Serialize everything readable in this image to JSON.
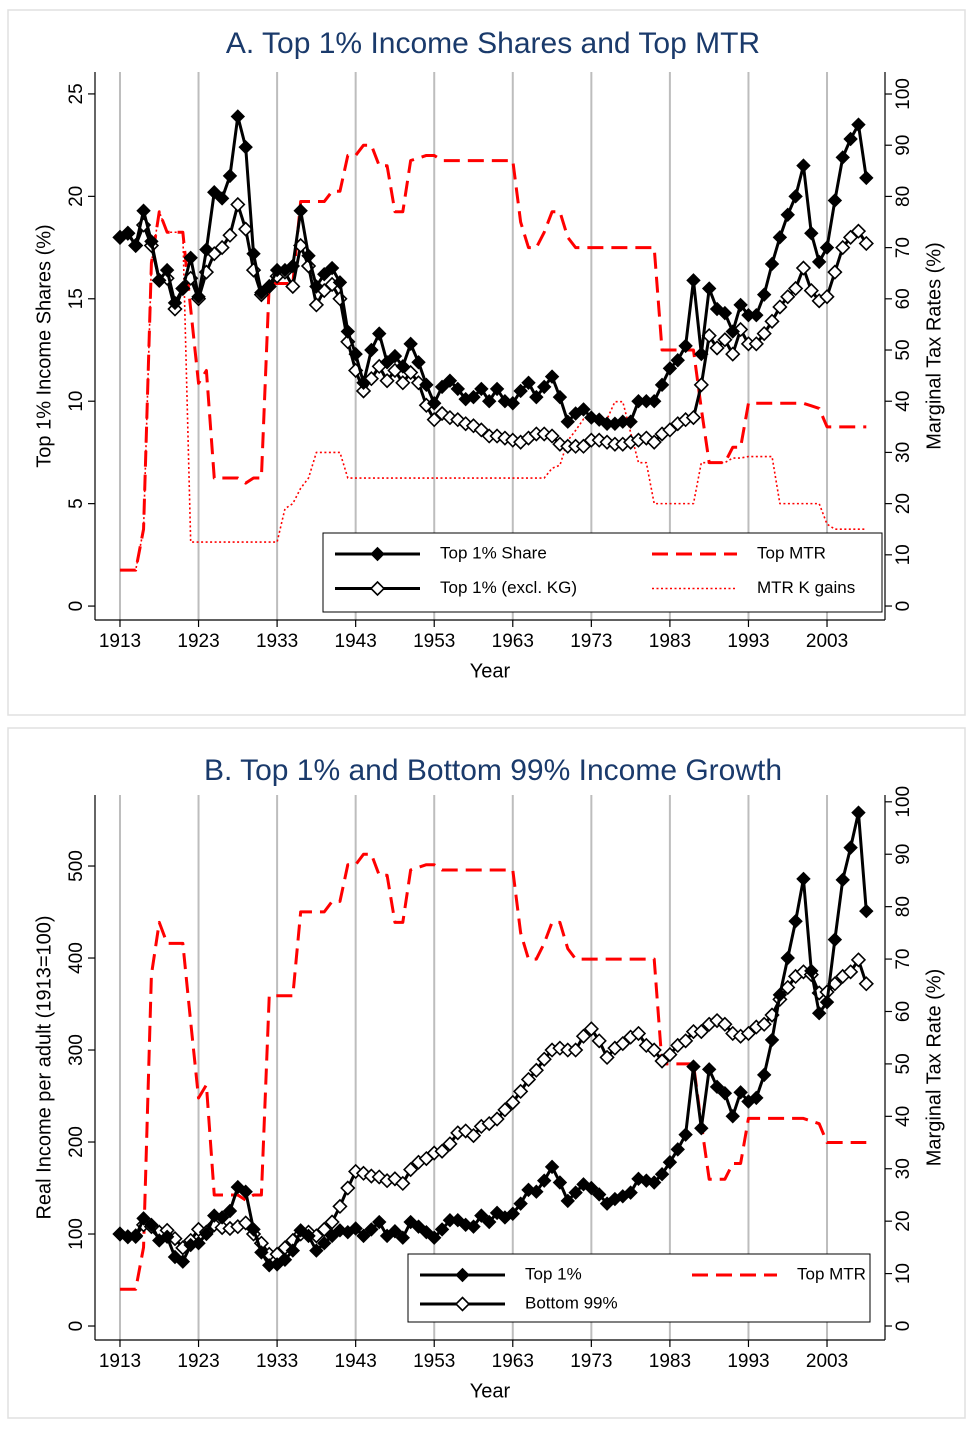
{
  "chart_data": [
    {
      "type": "line",
      "title": "A. Top 1% Income Shares and Top MTR",
      "x_label": "Year",
      "y_label": "Top 1% Income Shares (%)",
      "y2_label": "Marginal Tax Rates (%)",
      "x": [
        1913,
        1914,
        1915,
        1916,
        1917,
        1918,
        1919,
        1920,
        1921,
        1922,
        1923,
        1924,
        1925,
        1926,
        1927,
        1928,
        1929,
        1930,
        1931,
        1932,
        1933,
        1934,
        1935,
        1936,
        1937,
        1938,
        1939,
        1940,
        1941,
        1942,
        1943,
        1944,
        1945,
        1946,
        1947,
        1948,
        1949,
        1950,
        1951,
        1952,
        1953,
        1954,
        1955,
        1956,
        1957,
        1958,
        1959,
        1960,
        1961,
        1962,
        1963,
        1964,
        1965,
        1966,
        1967,
        1968,
        1969,
        1970,
        1971,
        1972,
        1973,
        1974,
        1975,
        1976,
        1977,
        1978,
        1979,
        1980,
        1981,
        1982,
        1983,
        1984,
        1985,
        1986,
        1987,
        1988,
        1989,
        1990,
        1991,
        1992,
        1993,
        1994,
        1995,
        1996,
        1997,
        1998,
        1999,
        2000,
        2001,
        2002,
        2003,
        2004,
        2005,
        2006,
        2007,
        2008
      ],
      "xlim": [
        1909.82,
        2010.38
      ],
      "xticks": [
        1913,
        1923,
        1933,
        1943,
        1953,
        1963,
        1973,
        1983,
        1993,
        2003
      ],
      "ylim": [
        -0.68,
        26.07
      ],
      "yticks": [
        0,
        5,
        10,
        15,
        20,
        25
      ],
      "y2lim": [
        -2.73,
        104.3
      ],
      "y2ticks": [
        0,
        10,
        20,
        30,
        40,
        50,
        60,
        70,
        80,
        90,
        100
      ],
      "grid": true,
      "legend": "lower right",
      "series": [
        {
          "name": "Top 1% Share",
          "color": "#000000",
          "style": "solid",
          "marker": "diamond",
          "values": [
            18.0,
            18.2,
            17.6,
            19.3,
            17.8,
            15.9,
            16.4,
            14.8,
            15.5,
            17.0,
            15.1,
            17.4,
            20.2,
            19.9,
            21.0,
            23.9,
            22.4,
            17.2,
            15.3,
            15.6,
            16.4,
            16.4,
            16.6,
            19.3,
            17.1,
            15.6,
            16.2,
            16.5,
            15.8,
            13.4,
            12.3,
            10.9,
            12.5,
            13.3,
            11.9,
            12.2,
            11.7,
            12.8,
            11.9,
            10.8,
            9.9,
            10.7,
            11.0,
            10.6,
            10.1,
            10.2,
            10.6,
            10.0,
            10.6,
            10.0,
            9.9,
            10.5,
            10.9,
            10.2,
            10.7,
            11.2,
            10.2,
            9.0,
            9.4,
            9.6,
            9.2,
            9.1,
            8.9,
            8.9,
            9.0,
            9.0,
            10.0,
            10.0,
            10.0,
            10.8,
            11.6,
            12.0,
            12.7,
            15.9,
            12.3,
            15.5,
            14.5,
            14.3,
            13.4,
            14.7,
            14.2,
            14.2,
            15.2,
            16.7,
            18.0,
            19.1,
            20.0,
            21.5,
            18.2,
            16.8,
            17.5,
            19.8,
            21.9,
            22.8,
            23.5,
            20.9
          ]
        },
        {
          "name": "Top 1% (excl. KG)",
          "color": "#000000",
          "style": "solid",
          "marker": "diamond-open",
          "values": [
            18.0,
            18.2,
            17.6,
            18.6,
            17.6,
            15.9,
            16.0,
            14.5,
            15.5,
            16.0,
            15.0,
            16.3,
            17.2,
            17.5,
            18.1,
            19.6,
            18.4,
            16.4,
            15.2,
            15.6,
            16.1,
            16.3,
            15.6,
            17.6,
            16.6,
            14.7,
            15.4,
            15.7,
            15.0,
            12.9,
            11.5,
            10.5,
            11.1,
            11.7,
            11.0,
            11.5,
            10.9,
            11.4,
            10.9,
            9.8,
            9.1,
            9.4,
            9.2,
            9.1,
            8.9,
            8.8,
            8.6,
            8.3,
            8.3,
            8.2,
            8.1,
            8.0,
            8.2,
            8.4,
            8.4,
            8.3,
            7.9,
            7.8,
            7.8,
            7.8,
            8.1,
            8.1,
            8.0,
            7.9,
            7.9,
            8.0,
            8.1,
            8.2,
            8.0,
            8.4,
            8.6,
            8.9,
            9.1,
            9.2,
            10.8,
            13.2,
            12.6,
            13.0,
            12.3,
            13.5,
            12.8,
            12.8,
            13.3,
            13.9,
            14.6,
            15.1,
            15.5,
            16.5,
            15.4,
            14.9,
            15.1,
            16.3,
            17.5,
            18.0,
            18.3,
            17.7
          ]
        },
        {
          "name": "Top MTR",
          "color": "#ff0000",
          "style": "dash",
          "axis": "y2",
          "values": [
            7,
            7,
            7,
            15,
            67,
            77,
            73,
            73,
            73,
            58,
            43.5,
            46,
            25,
            25,
            25,
            25,
            24,
            25,
            25,
            63,
            63,
            63,
            63,
            79,
            79,
            79,
            79,
            81,
            81,
            88,
            88,
            90,
            90,
            86,
            86,
            77,
            77,
            87,
            87.5,
            88,
            88,
            87,
            87,
            87,
            87,
            87,
            87,
            87,
            87,
            87,
            87,
            75,
            70,
            70,
            73,
            77,
            77,
            72,
            70,
            70,
            70,
            70,
            70,
            70,
            70,
            70,
            70,
            70,
            70,
            50,
            50,
            50,
            50,
            50,
            38.5,
            28,
            28,
            28,
            31,
            31,
            39.6,
            39.6,
            39.6,
            39.6,
            39.6,
            39.6,
            39.6,
            39.6,
            39.1,
            38.6,
            35,
            35,
            35,
            35,
            35,
            35
          ]
        },
        {
          "name": "MTR K gains",
          "color": "#ff0000",
          "style": "dot",
          "axis": "y2",
          "values": [
            7,
            7,
            7,
            15,
            67,
            77,
            73,
            73,
            73,
            12.5,
            12.5,
            12.5,
            12.5,
            12.5,
            12.5,
            12.5,
            12.5,
            12.5,
            12.5,
            12.5,
            12.5,
            19,
            20,
            23,
            25,
            30,
            30,
            30,
            30,
            25,
            25,
            25,
            25,
            25,
            25,
            25,
            25,
            25,
            25,
            25,
            25,
            25,
            25,
            25,
            25,
            25,
            25,
            25,
            25,
            25,
            25,
            25,
            25,
            25,
            25,
            26.9,
            27.5,
            32.3,
            34.3,
            36.5,
            36.5,
            36.5,
            36.5,
            39.9,
            39.9,
            33.9,
            28,
            28,
            20,
            20,
            20,
            20,
            20,
            20,
            28,
            28,
            28,
            28,
            28.9,
            28.9,
            29.2,
            29.2,
            29.2,
            29.2,
            20,
            20,
            20,
            20,
            20,
            20,
            16,
            15,
            15,
            15,
            15,
            15
          ]
        }
      ]
    },
    {
      "type": "line",
      "title": "B. Top 1% and Bottom 99% Income Growth",
      "x_label": "Year",
      "y_label": "Real Income per adult (1913=100)",
      "y2_label": "Marginal Tax Rate (%)",
      "x": [
        1913,
        1914,
        1915,
        1916,
        1917,
        1918,
        1919,
        1920,
        1921,
        1922,
        1923,
        1924,
        1925,
        1926,
        1927,
        1928,
        1929,
        1930,
        1931,
        1932,
        1933,
        1934,
        1935,
        1936,
        1937,
        1938,
        1939,
        1940,
        1941,
        1942,
        1943,
        1944,
        1945,
        1946,
        1947,
        1948,
        1949,
        1950,
        1951,
        1952,
        1953,
        1954,
        1955,
        1956,
        1957,
        1958,
        1959,
        1960,
        1961,
        1962,
        1963,
        1964,
        1965,
        1966,
        1967,
        1968,
        1969,
        1970,
        1971,
        1972,
        1973,
        1974,
        1975,
        1976,
        1977,
        1978,
        1979,
        1980,
        1981,
        1982,
        1983,
        1984,
        1985,
        1986,
        1987,
        1988,
        1989,
        1990,
        1991,
        1992,
        1993,
        1994,
        1995,
        1996,
        1997,
        1998,
        1999,
        2000,
        2001,
        2002,
        2003,
        2004,
        2005,
        2006,
        2007,
        2008
      ],
      "xlim": [
        1909.82,
        2010.38
      ],
      "xticks": [
        1913,
        1923,
        1933,
        1943,
        1953,
        1963,
        1973,
        1983,
        1993,
        2003
      ],
      "ylim": [
        -15.2,
        577.2
      ],
      "yticks": [
        0,
        100,
        200,
        300,
        400,
        500
      ],
      "y2lim": [
        -2.67,
        101.3
      ],
      "y2ticks": [
        0,
        10,
        20,
        30,
        40,
        50,
        60,
        70,
        80,
        90,
        100
      ],
      "grid": true,
      "legend": "lower right",
      "series": [
        {
          "name": "Top 1%",
          "color": "#000000",
          "style": "solid",
          "marker": "diamond",
          "values": [
            100,
            97,
            97,
            117,
            110,
            93,
            97,
            75,
            70,
            88,
            90,
            100,
            120,
            118,
            125,
            151,
            146,
            105,
            80,
            66,
            67,
            72,
            82,
            104,
            98,
            82,
            90,
            98,
            104,
            102,
            106,
            98,
            105,
            113,
            98,
            103,
            96,
            113,
            108,
            102,
            96,
            105,
            115,
            115,
            110,
            108,
            120,
            113,
            123,
            118,
            122,
            133,
            148,
            146,
            158,
            173,
            156,
            136,
            145,
            154,
            150,
            143,
            133,
            138,
            141,
            145,
            160,
            158,
            156,
            165,
            178,
            192,
            208,
            282,
            215,
            279,
            260,
            253,
            228,
            254,
            244,
            248,
            273,
            311,
            360,
            400,
            440,
            486,
            386,
            340,
            352,
            420,
            485,
            520,
            558,
            451
          ]
        },
        {
          "name": "Bottom 99%",
          "color": "#000000",
          "style": "solid",
          "marker": "diamond-open",
          "values": [
            100,
            97,
            98,
            110,
            108,
            102,
            104,
            95,
            85,
            93,
            105,
            102,
            110,
            107,
            106,
            108,
            112,
            100,
            90,
            78,
            78,
            85,
            93,
            100,
            102,
            98,
            105,
            113,
            130,
            150,
            168,
            166,
            163,
            162,
            158,
            160,
            155,
            170,
            178,
            182,
            188,
            190,
            198,
            210,
            212,
            207,
            217,
            220,
            225,
            235,
            243,
            255,
            268,
            278,
            290,
            300,
            302,
            300,
            300,
            315,
            323,
            310,
            292,
            302,
            307,
            314,
            318,
            305,
            300,
            288,
            295,
            305,
            310,
            320,
            320,
            328,
            332,
            328,
            318,
            315,
            318,
            325,
            328,
            338,
            355,
            368,
            380,
            385,
            382,
            362,
            363,
            372,
            380,
            385,
            398,
            372
          ]
        },
        {
          "name": "Top MTR",
          "color": "#ff0000",
          "style": "dash",
          "axis": "y2",
          "values": [
            7,
            7,
            7,
            15,
            67,
            77,
            73,
            73,
            73,
            58,
            43.5,
            46,
            25,
            25,
            25,
            25,
            24,
            25,
            25,
            63,
            63,
            63,
            63,
            79,
            79,
            79,
            79,
            81,
            81,
            88,
            88,
            90,
            90,
            86,
            86,
            77,
            77,
            87,
            87.5,
            88,
            88,
            87,
            87,
            87,
            87,
            87,
            87,
            87,
            87,
            87,
            87,
            75,
            70,
            70,
            73,
            77,
            77,
            72,
            70,
            70,
            70,
            70,
            70,
            70,
            70,
            70,
            70,
            70,
            70,
            50,
            50,
            50,
            50,
            50,
            38.5,
            28,
            28,
            28,
            31,
            31,
            39.6,
            39.6,
            39.6,
            39.6,
            39.6,
            39.6,
            39.6,
            39.6,
            39.1,
            38.6,
            35,
            35,
            35,
            35,
            35,
            35
          ]
        }
      ]
    }
  ]
}
